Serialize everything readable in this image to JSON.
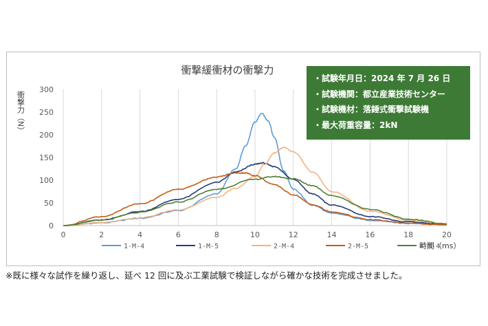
{
  "chart_data": {
    "type": "line",
    "title": "衝撃緩衝材の衝撃力",
    "xlabel": "時間（ms）",
    "ylabel": "衝撃力（N）",
    "xlim": [
      0,
      20
    ],
    "ylim": [
      0,
      300
    ],
    "x_ticks": [
      0,
      2,
      4,
      6,
      8,
      10,
      12,
      14,
      16,
      18,
      20
    ],
    "y_ticks": [
      0,
      50,
      100,
      150,
      200,
      250,
      300
    ],
    "grid": "vertical",
    "legend_position": "bottom",
    "series": [
      {
        "name": "1-M-4",
        "color": "#5b9bd5",
        "points": [
          [
            0,
            0
          ],
          [
            2,
            6
          ],
          [
            4,
            16
          ],
          [
            6,
            33
          ],
          [
            8,
            70
          ],
          [
            9,
            125
          ],
          [
            9.5,
            175
          ],
          [
            10,
            228
          ],
          [
            10.35,
            247
          ],
          [
            10.7,
            230
          ],
          [
            11,
            195
          ],
          [
            11.5,
            120
          ],
          [
            12,
            80
          ],
          [
            13,
            45
          ],
          [
            14,
            27
          ],
          [
            16,
            12
          ],
          [
            18,
            5
          ],
          [
            20,
            2
          ]
        ]
      },
      {
        "name": "1-M-5",
        "color": "#1f3c7a",
        "points": [
          [
            0,
            0
          ],
          [
            2,
            12
          ],
          [
            4,
            31
          ],
          [
            6,
            58
          ],
          [
            8,
            95
          ],
          [
            9,
            118
          ],
          [
            10,
            135
          ],
          [
            10.4,
            138
          ],
          [
            11,
            130
          ],
          [
            12,
            102
          ],
          [
            13,
            70
          ],
          [
            14,
            45
          ],
          [
            16,
            20
          ],
          [
            18,
            8
          ],
          [
            20,
            3
          ]
        ]
      },
      {
        "name": "2-M-4",
        "color": "#f4b183",
        "points": [
          [
            0,
            0
          ],
          [
            2,
            7
          ],
          [
            4,
            17
          ],
          [
            6,
            35
          ],
          [
            8,
            62
          ],
          [
            9,
            82
          ],
          [
            10,
            108
          ],
          [
            10.5,
            135
          ],
          [
            11,
            160
          ],
          [
            11.5,
            172
          ],
          [
            12,
            162
          ],
          [
            13,
            118
          ],
          [
            14,
            75
          ],
          [
            16,
            32
          ],
          [
            18,
            12
          ],
          [
            20,
            4
          ]
        ]
      },
      {
        "name": "2-M-5",
        "color": "#c55a11",
        "points": [
          [
            0,
            0
          ],
          [
            2,
            20
          ],
          [
            4,
            48
          ],
          [
            6,
            80
          ],
          [
            8,
            107
          ],
          [
            9,
            116
          ],
          [
            9.5,
            116
          ],
          [
            10,
            110
          ],
          [
            11,
            90
          ],
          [
            12,
            68
          ],
          [
            13,
            46
          ],
          [
            14,
            30
          ],
          [
            16,
            13
          ],
          [
            18,
            5
          ],
          [
            20,
            2
          ]
        ]
      },
      {
        "name": "4-M-4",
        "color": "#507e32",
        "points": [
          [
            0,
            0
          ],
          [
            2,
            12
          ],
          [
            4,
            29
          ],
          [
            6,
            52
          ],
          [
            8,
            80
          ],
          [
            10,
            102
          ],
          [
            11,
            108
          ],
          [
            12,
            103
          ],
          [
            13,
            88
          ],
          [
            14,
            66
          ],
          [
            16,
            36
          ],
          [
            18,
            14
          ],
          [
            20,
            4
          ]
        ]
      }
    ]
  },
  "info_box": {
    "lines": [
      "・試験年月日：2024 年 7 月 26 日",
      "・試験機関：都立産業技術センター",
      "・試験機材：落錘式衝撃試験機",
      "・最大荷重容量：2kN"
    ],
    "background": "#3d7a35"
  },
  "footnote": "※既に様々な試作を繰り返し、延べ 12 回に及ぶ工業試験で検証しながら確かな技術を完成させました。"
}
